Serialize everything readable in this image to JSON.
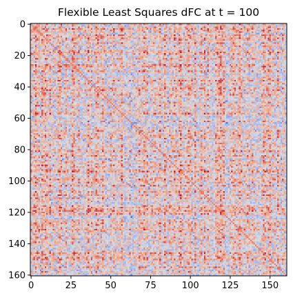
{
  "chart_data": {
    "type": "heatmap",
    "title": "Flexible Least Squares dFC at t = 100",
    "matrix_size": 161,
    "x_ticks": [
      0,
      25,
      50,
      75,
      100,
      125,
      150
    ],
    "y_ticks": [
      0,
      20,
      40,
      60,
      80,
      100,
      120,
      140,
      160
    ],
    "xlim": [
      -0.5,
      160.5
    ],
    "ylim": [
      160.5,
      -0.5
    ],
    "colormap": "coolwarm",
    "colors": {
      "low": "#3b4cc0",
      "mid": "#dddcdc",
      "high": "#b40426"
    },
    "value_range": [
      -1,
      1
    ],
    "grid": false,
    "colorbar": false
  }
}
